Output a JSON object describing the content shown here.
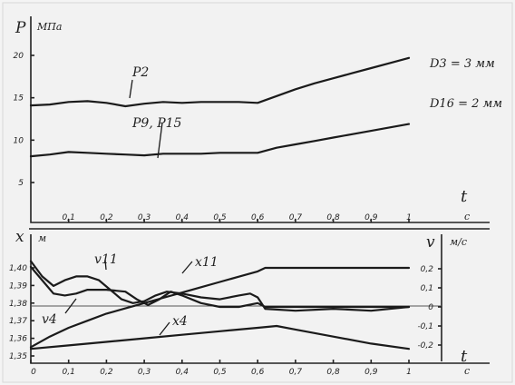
{
  "chart_data": [
    {
      "type": "line",
      "ylabel": "P",
      "yunit": "МПа",
      "xlabel": "t",
      "xunit": "с",
      "xlim": [
        0,
        1.0
      ],
      "ylim": [
        0,
        22
      ],
      "yticks": [
        5,
        10,
        15,
        20
      ],
      "xticks": [
        0.1,
        0.2,
        0.3,
        0.4,
        0.5,
        0.6,
        0.7,
        0.8,
        0.9,
        1.0
      ],
      "annotations": [
        "D3 = 3 мм",
        "D16 = 2 мм"
      ],
      "series": [
        {
          "name": "P2",
          "x": [
            0,
            0.05,
            0.1,
            0.15,
            0.2,
            0.25,
            0.3,
            0.35,
            0.4,
            0.45,
            0.5,
            0.55,
            0.6,
            0.65,
            0.7,
            0.75,
            0.8,
            0.85,
            0.9,
            0.95,
            1.0
          ],
          "y": [
            14.1,
            14.2,
            14.5,
            14.6,
            14.4,
            14.0,
            14.3,
            14.5,
            14.4,
            14.5,
            14.5,
            14.5,
            14.4,
            15.2,
            16.0,
            16.7,
            17.3,
            17.9,
            18.5,
            19.1,
            19.7
          ]
        },
        {
          "name": "P9, P15",
          "x": [
            0,
            0.05,
            0.1,
            0.15,
            0.2,
            0.25,
            0.3,
            0.35,
            0.4,
            0.45,
            0.5,
            0.55,
            0.6,
            0.65,
            0.7,
            0.75,
            0.8,
            0.85,
            0.9,
            0.95,
            1.0
          ],
          "y": [
            8.1,
            8.3,
            8.6,
            8.5,
            8.4,
            8.3,
            8.2,
            8.4,
            8.4,
            8.4,
            8.5,
            8.5,
            8.5,
            9.1,
            9.5,
            9.9,
            10.3,
            10.7,
            11.1,
            11.5,
            11.9
          ]
        }
      ]
    },
    {
      "type": "line",
      "ylabel": "x",
      "yunit": "м",
      "y2label": "v",
      "y2unit": "м/с",
      "xlabel": "t",
      "xunit": "с",
      "xlim": [
        0,
        1.0
      ],
      "ylim": [
        1.35,
        1.41
      ],
      "y2lim": [
        -0.25,
        0.3
      ],
      "yticks": [
        1.35,
        1.36,
        1.37,
        1.38,
        1.39,
        1.4
      ],
      "y2ticks": [
        -0.2,
        -0.1,
        0,
        0.1,
        0.2
      ],
      "xticks": [
        0,
        0.1,
        0.2,
        0.3,
        0.4,
        0.5,
        0.6,
        0.7,
        0.8,
        0.9,
        1.0
      ],
      "series": [
        {
          "name": "x11",
          "axis": "x",
          "x": [
            0,
            0.05,
            0.1,
            0.15,
            0.2,
            0.25,
            0.3,
            0.35,
            0.4,
            0.45,
            0.5,
            0.55,
            0.6,
            0.62,
            0.7,
            0.8,
            0.9,
            1.0
          ],
          "y": [
            1.355,
            1.361,
            1.366,
            1.37,
            1.374,
            1.377,
            1.38,
            1.383,
            1.386,
            1.389,
            1.392,
            1.395,
            1.398,
            1.4,
            1.4,
            1.4,
            1.4,
            1.4
          ]
        },
        {
          "name": "x4",
          "axis": "x",
          "x": [
            0,
            0.1,
            0.2,
            0.3,
            0.4,
            0.5,
            0.6,
            0.65,
            0.7,
            0.8,
            0.9,
            1.0
          ],
          "y": [
            1.354,
            1.356,
            1.358,
            1.36,
            1.362,
            1.364,
            1.366,
            1.367,
            1.365,
            1.361,
            1.357,
            1.354
          ]
        },
        {
          "name": "v11",
          "axis": "v",
          "x": [
            0,
            0.03,
            0.06,
            0.09,
            0.12,
            0.15,
            0.18,
            0.21,
            0.24,
            0.27,
            0.3,
            0.33,
            0.36,
            0.4,
            0.45,
            0.5,
            0.55,
            0.58,
            0.6,
            0.62,
            0.7,
            0.8,
            0.9,
            1.0
          ],
          "y": [
            0.24,
            0.16,
            0.11,
            0.14,
            0.16,
            0.16,
            0.14,
            0.09,
            0.04,
            0.02,
            0.03,
            0.06,
            0.08,
            0.07,
            0.05,
            0.04,
            0.06,
            0.07,
            0.05,
            -0.01,
            -0.02,
            -0.01,
            -0.02,
            0.0
          ]
        },
        {
          "name": "v4",
          "axis": "v",
          "x": [
            0,
            0.03,
            0.06,
            0.09,
            0.12,
            0.15,
            0.2,
            0.25,
            0.28,
            0.31,
            0.34,
            0.37,
            0.4,
            0.45,
            0.5,
            0.55,
            0.6,
            0.62,
            0.7,
            0.8,
            0.9,
            1.0
          ],
          "y": [
            0.21,
            0.14,
            0.07,
            0.06,
            0.07,
            0.09,
            0.09,
            0.08,
            0.04,
            0.01,
            0.04,
            0.08,
            0.06,
            0.02,
            0.0,
            0.0,
            0.02,
            0.0,
            0.0,
            0.0,
            0.0,
            0.0
          ]
        }
      ]
    }
  ]
}
